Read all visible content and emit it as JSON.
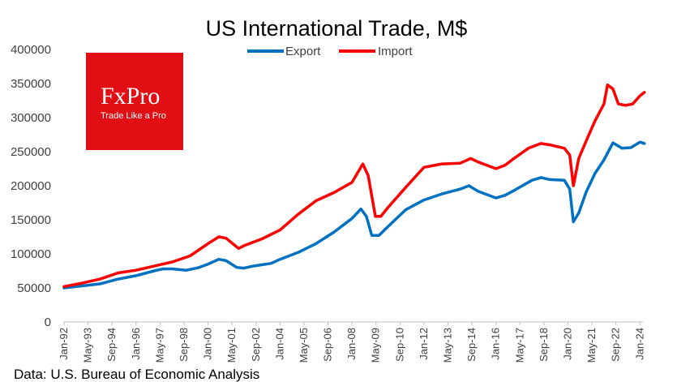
{
  "chart_data": {
    "type": "line",
    "title": "US International Trade, M$",
    "xlabel": "",
    "ylabel": "",
    "ylim": [
      0,
      400000
    ],
    "y_ticks": [
      "0",
      "50000",
      "100000",
      "150000",
      "200000",
      "250000",
      "300000",
      "350000",
      "400000"
    ],
    "x_ticks": [
      "Jan-92",
      "May-93",
      "Sep-94",
      "Jan-96",
      "May-97",
      "Sep-98",
      "Jan-00",
      "May-01",
      "Sep-02",
      "Jan-04",
      "May-05",
      "Sep-06",
      "Jan-08",
      "May-09",
      "Sep-10",
      "Jan-12",
      "May-13",
      "Sep-14",
      "Jan-16",
      "May-17",
      "Sep-18",
      "Jan-20",
      "May-21",
      "Sep-22",
      "Jan-24"
    ],
    "x_range": [
      "1992-01",
      "2024-03"
    ],
    "legend_position": "top-center",
    "grid": false,
    "series": [
      {
        "name": "Export",
        "color": "#0070C0",
        "points": [
          [
            1992.0,
            50000
          ],
          [
            1993.0,
            53000
          ],
          [
            1994.0,
            56000
          ],
          [
            1995.0,
            63000
          ],
          [
            1996.0,
            68000
          ],
          [
            1997.0,
            75000
          ],
          [
            1997.5,
            78000
          ],
          [
            1998.0,
            78000
          ],
          [
            1998.8,
            76000
          ],
          [
            1999.5,
            80000
          ],
          [
            2000.0,
            85000
          ],
          [
            2000.6,
            92000
          ],
          [
            2001.0,
            90000
          ],
          [
            2001.6,
            80000
          ],
          [
            2002.0,
            79000
          ],
          [
            2002.5,
            82000
          ],
          [
            2003.0,
            84000
          ],
          [
            2003.5,
            86000
          ],
          [
            2004.0,
            92000
          ],
          [
            2005.0,
            102000
          ],
          [
            2006.0,
            115000
          ],
          [
            2007.0,
            132000
          ],
          [
            2007.5,
            142000
          ],
          [
            2008.0,
            152000
          ],
          [
            2008.5,
            166000
          ],
          [
            2008.8,
            155000
          ],
          [
            2009.1,
            127000
          ],
          [
            2009.5,
            127000
          ],
          [
            2010.0,
            140000
          ],
          [
            2011.0,
            165000
          ],
          [
            2012.0,
            179000
          ],
          [
            2013.0,
            188000
          ],
          [
            2014.0,
            195000
          ],
          [
            2014.5,
            200000
          ],
          [
            2015.0,
            192000
          ],
          [
            2016.0,
            182000
          ],
          [
            2016.5,
            186000
          ],
          [
            2017.0,
            193000
          ],
          [
            2018.0,
            208000
          ],
          [
            2018.5,
            212000
          ],
          [
            2019.0,
            209000
          ],
          [
            2019.8,
            208000
          ],
          [
            2020.1,
            195000
          ],
          [
            2020.3,
            147000
          ],
          [
            2020.6,
            160000
          ],
          [
            2021.0,
            190000
          ],
          [
            2021.5,
            218000
          ],
          [
            2022.0,
            238000
          ],
          [
            2022.5,
            263000
          ],
          [
            2023.0,
            255000
          ],
          [
            2023.5,
            256000
          ],
          [
            2024.0,
            264000
          ],
          [
            2024.25,
            262000
          ]
        ]
      },
      {
        "name": "Import",
        "color": "#FF0000",
        "points": [
          [
            1992.0,
            52000
          ],
          [
            1993.0,
            57000
          ],
          [
            1994.0,
            63000
          ],
          [
            1995.0,
            72000
          ],
          [
            1996.0,
            76000
          ],
          [
            1997.0,
            82000
          ],
          [
            1998.0,
            88000
          ],
          [
            1999.0,
            97000
          ],
          [
            2000.0,
            115000
          ],
          [
            2000.6,
            125000
          ],
          [
            2001.0,
            123000
          ],
          [
            2001.7,
            108000
          ],
          [
            2002.0,
            112000
          ],
          [
            2003.0,
            122000
          ],
          [
            2004.0,
            135000
          ],
          [
            2005.0,
            158000
          ],
          [
            2006.0,
            178000
          ],
          [
            2007.0,
            190000
          ],
          [
            2008.0,
            205000
          ],
          [
            2008.6,
            232000
          ],
          [
            2008.9,
            215000
          ],
          [
            2009.3,
            155000
          ],
          [
            2009.6,
            155000
          ],
          [
            2010.0,
            168000
          ],
          [
            2011.0,
            198000
          ],
          [
            2012.0,
            227000
          ],
          [
            2013.0,
            232000
          ],
          [
            2014.0,
            233000
          ],
          [
            2014.6,
            240000
          ],
          [
            2015.0,
            235000
          ],
          [
            2016.0,
            225000
          ],
          [
            2016.5,
            230000
          ],
          [
            2017.0,
            240000
          ],
          [
            2017.8,
            255000
          ],
          [
            2018.5,
            262000
          ],
          [
            2019.0,
            260000
          ],
          [
            2019.8,
            255000
          ],
          [
            2020.1,
            245000
          ],
          [
            2020.3,
            200000
          ],
          [
            2020.6,
            240000
          ],
          [
            2021.0,
            265000
          ],
          [
            2021.5,
            295000
          ],
          [
            2022.0,
            320000
          ],
          [
            2022.2,
            348000
          ],
          [
            2022.5,
            342000
          ],
          [
            2022.8,
            320000
          ],
          [
            2023.2,
            318000
          ],
          [
            2023.6,
            320000
          ],
          [
            2024.0,
            332000
          ],
          [
            2024.25,
            337000
          ]
        ]
      }
    ]
  },
  "logo": {
    "brand": "FxPro",
    "tagline": "Trade Like a Pro",
    "color": "#E10E13"
  },
  "source": "Data: U.S. Bureau of Economic Analysis"
}
